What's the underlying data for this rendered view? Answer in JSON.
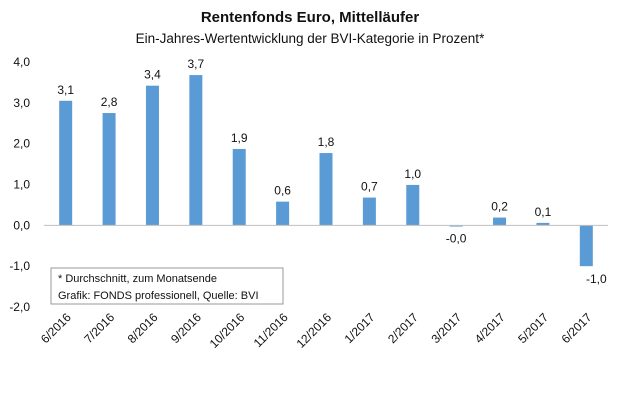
{
  "chart_data": {
    "type": "bar",
    "title": "Rentenfonds Euro, Mittelläufer",
    "subtitle": "Ein-Jahres-Wertentwicklung der BVI-Kategorie in Prozent*",
    "xlabel": "",
    "ylabel": "",
    "categories": [
      "6/2016",
      "7/2016",
      "8/2016",
      "9/2016",
      "10/2016",
      "11/2016",
      "12/2016",
      "1/2017",
      "2/2017",
      "3/2017",
      "4/2017",
      "5/2017",
      "6/2017"
    ],
    "values": [
      3.05,
      2.75,
      3.42,
      3.68,
      1.87,
      0.58,
      1.77,
      0.68,
      0.99,
      -0.02,
      0.19,
      0.06,
      -1.0
    ],
    "value_labels": [
      "3,1",
      "2,8",
      "3,4",
      "3,7",
      "1,9",
      "0,6",
      "1,8",
      "0,7",
      "1,0",
      "-0,0",
      "0,2",
      "0,1",
      "-1,0"
    ],
    "ylim": [
      -2.0,
      4.0
    ],
    "yticks": [
      4.0,
      3.0,
      2.0,
      1.0,
      0.0,
      -1.0,
      -2.0
    ],
    "ytick_labels": [
      "4,0",
      "3,0",
      "2,0",
      "1,0",
      "0,0",
      "-1,0",
      "-2,0"
    ],
    "grid": false,
    "bar_color": "#5B9BD5",
    "note_lines": [
      "* Durchschnitt, zum Monatsende",
      "Grafik: FONDS professionell, Quelle: BVI"
    ]
  }
}
